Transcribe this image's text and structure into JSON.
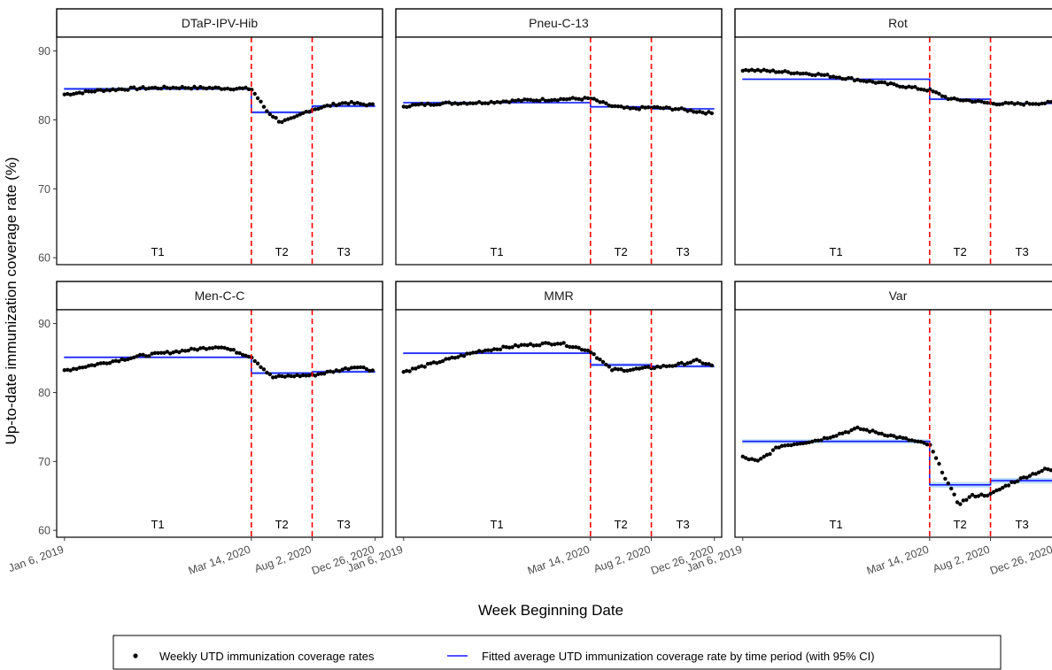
{
  "figure": {
    "ylabel": "Up-to-date immunization coverage rate (%)",
    "xlabel": "Week Beginning Date"
  },
  "axes": {
    "yticks": [
      60,
      70,
      80,
      90
    ],
    "ylim": [
      59,
      92
    ],
    "xticks": [
      {
        "date": "2019-01-06",
        "label": "Jan 6, 2019"
      },
      {
        "date": "2020-03-14",
        "label": "Mar 14, 2020"
      },
      {
        "date": "2020-08-02",
        "label": "Aug 2, 2020"
      },
      {
        "date": "2020-12-26",
        "label": "Dec 26, 2020"
      }
    ],
    "xlim": [
      "2018-12-19",
      "2021-01-12"
    ]
  },
  "periods": {
    "labels": [
      "T1",
      "T2",
      "T3"
    ],
    "boundaries": [
      "2020-03-14",
      "2020-08-02"
    ]
  },
  "legend": {
    "placement": "bottom",
    "points_label": "Weekly UTD immunization coverage rates",
    "line_label": "Fitted average UTD immunization coverage rate by time period (with 95% CI)"
  },
  "colors": {
    "points": "#000000",
    "fit_line": "#1a1aff",
    "ci_band": "#a8d4f5",
    "boundary": "#ff0000",
    "strip_bg": "#ffffff"
  },
  "chart_data": [
    {
      "type": "scatter",
      "title": "DTaP-IPV-Hib",
      "observed": {
        "x": [
          "2019-01-06",
          "2019-04-01",
          "2019-07-01",
          "2019-10-01",
          "2020-01-01",
          "2020-03-14",
          "2020-04-20",
          "2020-05-20",
          "2020-06-20",
          "2020-07-20",
          "2020-08-02",
          "2020-09-20",
          "2020-10-20",
          "2020-12-26"
        ],
        "y": [
          83.7,
          84.3,
          84.6,
          84.7,
          84.6,
          84.5,
          81.2,
          79.7,
          80.2,
          81.2,
          81.5,
          82.2,
          82.5,
          82.1
        ]
      },
      "fitted": [
        {
          "period": "T1",
          "mean": 84.5,
          "ci": [
            84.3,
            84.7
          ]
        },
        {
          "period": "T2",
          "mean": 81.1,
          "ci": [
            80.9,
            81.3
          ]
        },
        {
          "period": "T3",
          "mean": 82.0,
          "ci": [
            81.8,
            82.2
          ]
        }
      ]
    },
    {
      "type": "scatter",
      "title": "Pneu-C-13",
      "observed": {
        "x": [
          "2019-01-06",
          "2019-04-01",
          "2019-07-01",
          "2019-10-01",
          "2020-01-01",
          "2020-03-14",
          "2020-05-01",
          "2020-06-15",
          "2020-08-02",
          "2020-10-01",
          "2020-12-26"
        ],
        "y": [
          82.0,
          82.4,
          82.5,
          82.8,
          83.0,
          83.1,
          82.0,
          81.6,
          81.8,
          81.6,
          80.9
        ]
      },
      "fitted": [
        {
          "period": "T1",
          "mean": 82.5,
          "ci": [
            82.35,
            82.65
          ]
        },
        {
          "period": "T2",
          "mean": 81.9,
          "ci": [
            81.75,
            82.05
          ]
        },
        {
          "period": "T3",
          "mean": 81.6,
          "ci": [
            81.45,
            81.75
          ]
        }
      ]
    },
    {
      "type": "scatter",
      "title": "Rot",
      "observed": {
        "x": [
          "2019-01-06",
          "2019-04-01",
          "2019-07-01",
          "2019-10-01",
          "2020-01-01",
          "2020-03-14",
          "2020-05-01",
          "2020-06-15",
          "2020-08-02",
          "2020-10-01",
          "2020-12-26"
        ],
        "y": [
          87.3,
          87.0,
          86.6,
          85.8,
          85.0,
          84.3,
          83.0,
          82.8,
          82.4,
          82.3,
          82.5
        ]
      },
      "fitted": [
        {
          "period": "T1",
          "mean": 85.9,
          "ci": [
            85.75,
            86.05
          ]
        },
        {
          "period": "T2",
          "mean": 83.0,
          "ci": [
            82.85,
            83.15
          ]
        },
        {
          "period": "T3",
          "mean": 82.4,
          "ci": [
            82.25,
            82.55
          ]
        }
      ]
    },
    {
      "type": "scatter",
      "title": "Men-C-C",
      "observed": {
        "x": [
          "2019-01-06",
          "2019-04-01",
          "2019-07-01",
          "2019-10-01",
          "2020-01-01",
          "2020-03-14",
          "2020-05-01",
          "2020-06-15",
          "2020-08-02",
          "2020-10-01",
          "2020-11-15",
          "2020-12-26"
        ],
        "y": [
          83.2,
          84.2,
          85.3,
          86.0,
          86.7,
          85.2,
          82.2,
          82.4,
          82.5,
          83.2,
          83.8,
          83.1
        ]
      },
      "fitted": [
        {
          "period": "T1",
          "mean": 85.1,
          "ci": [
            84.95,
            85.25
          ]
        },
        {
          "period": "T2",
          "mean": 82.8,
          "ci": [
            82.6,
            83.0
          ]
        },
        {
          "period": "T3",
          "mean": 83.0,
          "ci": [
            82.8,
            83.2
          ]
        }
      ]
    },
    {
      "type": "scatter",
      "title": "MMR",
      "observed": {
        "x": [
          "2019-01-06",
          "2019-04-01",
          "2019-07-01",
          "2019-10-01",
          "2020-01-01",
          "2020-03-14",
          "2020-05-01",
          "2020-06-15",
          "2020-08-02",
          "2020-10-01",
          "2020-11-15",
          "2020-12-26"
        ],
        "y": [
          83.0,
          84.5,
          86.0,
          86.8,
          87.2,
          86.0,
          83.3,
          83.3,
          83.6,
          84.0,
          84.6,
          83.8
        ]
      },
      "fitted": [
        {
          "period": "T1",
          "mean": 85.7,
          "ci": [
            85.55,
            85.85
          ]
        },
        {
          "period": "T2",
          "mean": 84.0,
          "ci": [
            83.75,
            84.25
          ]
        },
        {
          "period": "T3",
          "mean": 83.8,
          "ci": [
            83.6,
            84.0
          ]
        }
      ]
    },
    {
      "type": "scatter",
      "title": "Var",
      "observed": {
        "x": [
          "2019-01-06",
          "2019-02-10",
          "2019-04-01",
          "2019-07-01",
          "2019-10-01",
          "2020-01-01",
          "2020-03-14",
          "2020-04-20",
          "2020-05-20",
          "2020-06-20",
          "2020-08-02",
          "2020-09-20",
          "2020-11-01",
          "2020-12-10",
          "2020-12-26"
        ],
        "y": [
          70.6,
          70.0,
          72.2,
          73.1,
          74.8,
          73.5,
          72.4,
          67.5,
          63.8,
          65.0,
          65.2,
          66.9,
          68.0,
          68.9,
          68.6
        ]
      },
      "fitted": [
        {
          "period": "T1",
          "mean": 72.9,
          "ci": [
            72.6,
            73.2
          ]
        },
        {
          "period": "T2",
          "mean": 66.6,
          "ci": [
            66.2,
            67.0
          ]
        },
        {
          "period": "T3",
          "mean": 67.2,
          "ci": [
            66.8,
            67.6
          ]
        }
      ]
    }
  ]
}
